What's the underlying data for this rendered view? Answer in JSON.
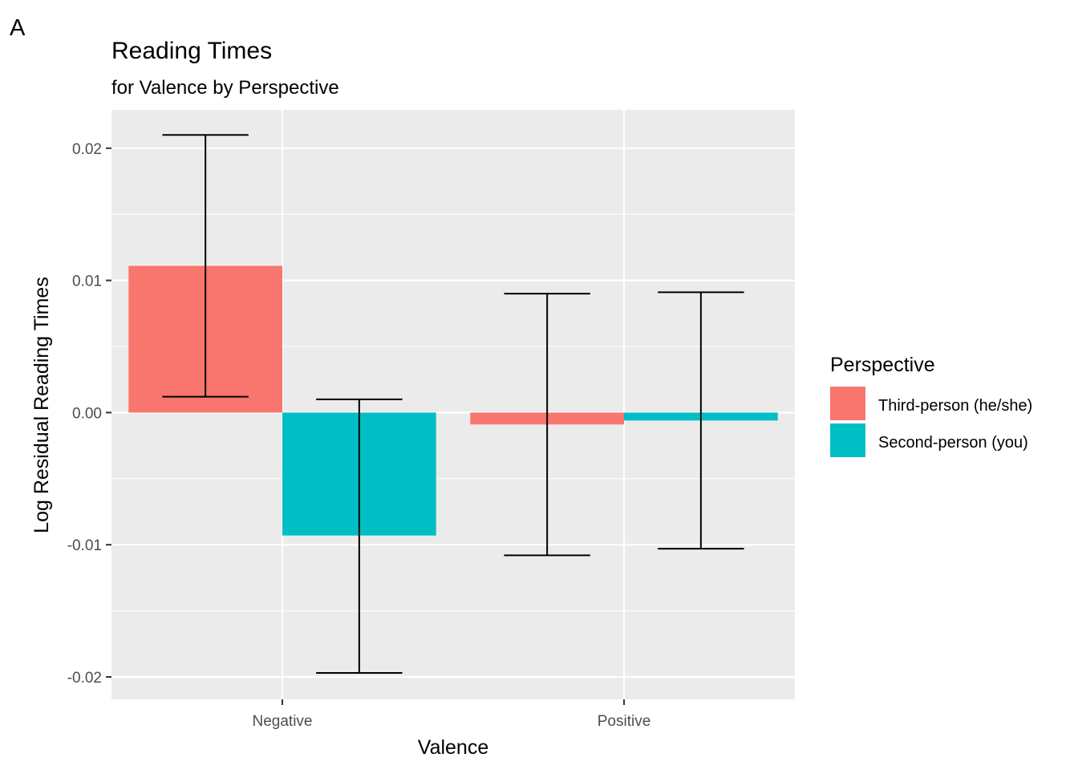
{
  "panel_label": "A",
  "chart_data": {
    "type": "bar",
    "title": "Reading Times",
    "subtitle": "for Valence by Perspective",
    "xlabel": "Valence",
    "ylabel": "Log Residual Reading Times",
    "categories": [
      "Negative",
      "Positive"
    ],
    "ylim": [
      -0.0217,
      0.0229
    ],
    "yticks": [
      -0.02,
      -0.01,
      0.0,
      0.01,
      0.02
    ],
    "ytick_labels": [
      "-0.02",
      "-0.01",
      "0.00",
      "0.01",
      "0.02"
    ],
    "grid": true,
    "legend": {
      "title": "Perspective",
      "position": "right"
    },
    "series": [
      {
        "name": "Third-person (he/she)",
        "color": "#F8766D",
        "values": [
          0.0111,
          -0.0009
        ],
        "error_low": [
          0.0012,
          -0.0108
        ],
        "error_high": [
          0.021,
          0.009
        ]
      },
      {
        "name": "Second-person (you)",
        "color": "#00BFC4",
        "values": [
          -0.0093,
          -0.0006
        ],
        "error_low": [
          -0.0197,
          -0.0103
        ],
        "error_high": [
          0.001,
          0.0091
        ]
      }
    ],
    "panel_background": "#EBEBEB",
    "grid_color": "#FFFFFF"
  }
}
